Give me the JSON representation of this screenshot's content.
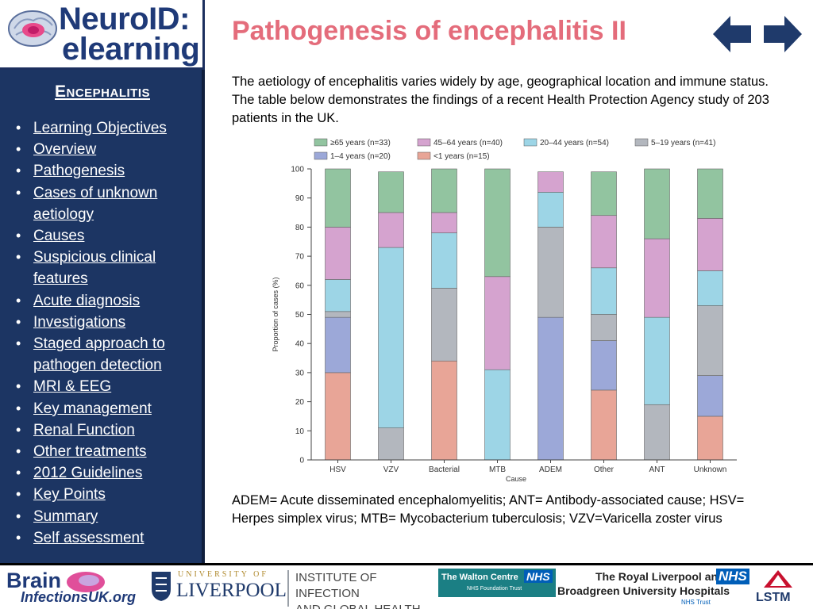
{
  "header": {
    "logo_line1": "NeuroID:",
    "logo_line2": "elearning",
    "title": "Pathogenesis of encephalitis II"
  },
  "sidebar": {
    "title": "Encephalitis",
    "items": [
      {
        "label": "Learning Objectives"
      },
      {
        "label": "Overview"
      },
      {
        "label": "Pathogenesis"
      },
      {
        "label": "Cases of unknown aetiology"
      },
      {
        "label": "Causes"
      },
      {
        "label": "Suspicious clinical features"
      },
      {
        "label": "Acute diagnosis"
      },
      {
        "label": "Investigations"
      },
      {
        "label": "Staged approach to pathogen detection"
      },
      {
        "label": "MRI & EEG"
      },
      {
        "label": "Key management"
      },
      {
        "label": "Renal Function"
      },
      {
        "label": "Other treatments"
      },
      {
        "label": "2012 Guidelines"
      },
      {
        "label": "Key Points"
      },
      {
        "label": "Summary"
      },
      {
        "label": "Self assessment"
      }
    ]
  },
  "content": {
    "intro": "The aetiology of encephalitis varies widely by age, geographical location and immune status. The table below demonstrates the findings of a recent Health Protection Agency study of 203 patients in the UK.",
    "footnote": "ADEM= Acute disseminated encephalomyelitis; ANT= Antibody-associated cause; HSV= Herpes simplex virus; MTB= Mycobacterium tuberculosis; VZV=Varicella zoster virus"
  },
  "chart_data": {
    "type": "bar",
    "stacked": true,
    "xlabel": "Cause",
    "ylabel": "Proportion of cases (%)",
    "ylim": [
      0,
      100
    ],
    "yticks": [
      0,
      10,
      20,
      30,
      40,
      50,
      60,
      70,
      80,
      90,
      100
    ],
    "grid": false,
    "legend_position": "top",
    "categories": [
      "HSV",
      "VZV",
      "Bacterial",
      "MTB",
      "ADEM",
      "Other",
      "ANT",
      "Unknown"
    ],
    "series": [
      {
        "name": "<1 years (n=15)",
        "color": "#e8a597",
        "values": [
          30,
          0,
          34,
          0,
          0,
          24,
          0,
          15
        ]
      },
      {
        "name": "1–4 years (n=20)",
        "color": "#9ca8d8",
        "values": [
          19,
          0,
          0,
          0,
          49,
          17,
          0,
          14
        ]
      },
      {
        "name": "5–19 years (n=41)",
        "color": "#b3b7be",
        "values": [
          2,
          11,
          25,
          0,
          31,
          9,
          19,
          24
        ]
      },
      {
        "name": "20–44 years (n=54)",
        "color": "#9dd5e6",
        "values": [
          11,
          62,
          19,
          31,
          12,
          16,
          30,
          12
        ]
      },
      {
        "name": "45–64 years (n=40)",
        "color": "#d5a3cf",
        "values": [
          18,
          12,
          7,
          32,
          7,
          18,
          27,
          18
        ]
      },
      {
        "name": "≥65 years (n=33)",
        "color": "#92c4a0",
        "values": [
          20,
          14,
          15,
          37,
          0,
          15,
          24,
          17
        ]
      }
    ]
  },
  "footer": {
    "brain_infections_line1": "Brain",
    "brain_infections_line2": "InfectionsUK.org",
    "liverpool_top": "UNIVERSITY OF",
    "liverpool_bottom": "LIVERPOOL",
    "iigh_line1": "INSTITUTE OF INFECTION",
    "iigh_line2": "AND GLOBAL HEALTH",
    "walton_name": "The Walton Centre",
    "walton_sub": "NHS Foundation Trust",
    "nhs_badge": "NHS",
    "rlbuh_line1": "The Royal Liverpool and",
    "rlbuh_line2": "Broadgreen University Hospitals",
    "rlbuh_sub": "NHS Trust",
    "lstm": "LSTM"
  }
}
